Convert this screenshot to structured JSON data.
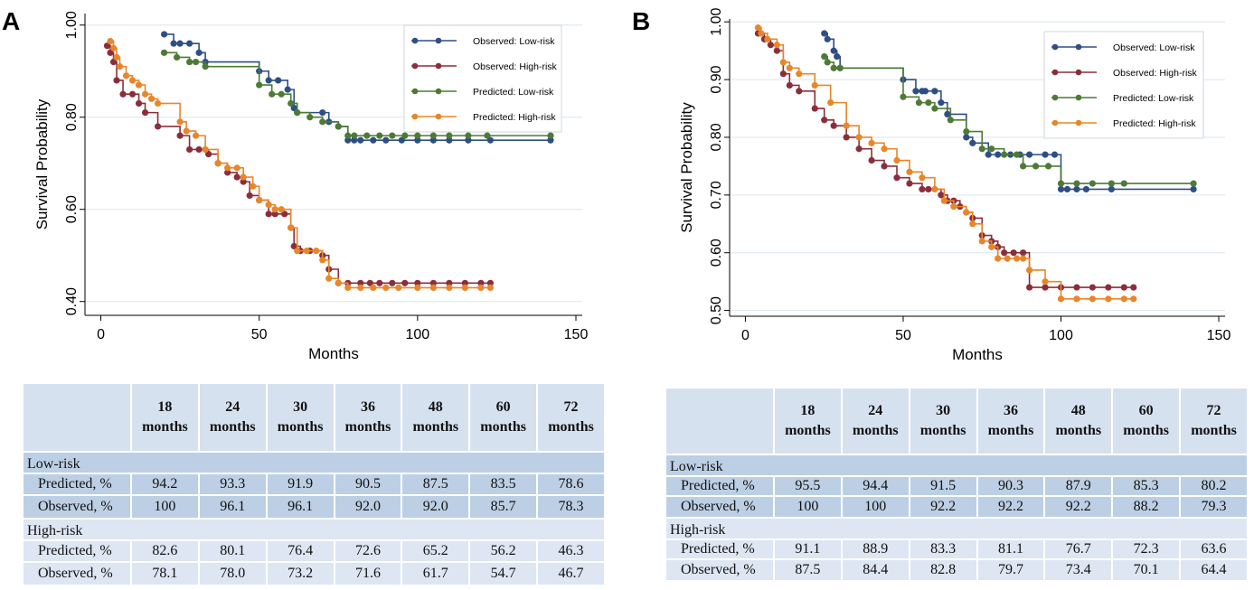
{
  "chart_data": [
    {
      "panel": "A",
      "type": "line",
      "xlabel": "Months",
      "ylabel": "Survival Probability",
      "xlim": [
        -5,
        152
      ],
      "ylim": [
        0.37,
        1.025
      ],
      "xticks": [
        0,
        50,
        100,
        150
      ],
      "yticks": [
        0.4,
        0.6,
        0.8,
        1.0
      ],
      "ytick_labels": [
        "0.40",
        "0.60",
        "0.80",
        "1.00"
      ],
      "legend_position": "top-right",
      "series": [
        {
          "name": "Observed: Low-risk",
          "color": "#2e4f86",
          "x": [
            20,
            23,
            25,
            28,
            31,
            33,
            50,
            53,
            56,
            59,
            61,
            62,
            70,
            72,
            75,
            78,
            80,
            82,
            86,
            90,
            95,
            100,
            105,
            110,
            116,
            123,
            142
          ],
          "y": [
            0.98,
            0.96,
            0.96,
            0.96,
            0.94,
            0.92,
            0.9,
            0.88,
            0.88,
            0.86,
            0.82,
            0.81,
            0.81,
            0.79,
            0.78,
            0.75,
            0.75,
            0.75,
            0.75,
            0.75,
            0.75,
            0.75,
            0.75,
            0.75,
            0.75,
            0.75,
            0.75
          ]
        },
        {
          "name": "Observed: High-risk",
          "color": "#8b2e3c",
          "x": [
            2,
            3,
            4,
            5,
            7,
            10,
            12,
            14,
            18,
            25,
            28,
            31,
            34,
            37,
            40,
            43,
            45,
            47,
            50,
            53,
            55,
            58,
            60,
            61,
            63,
            66,
            70,
            72,
            75,
            78,
            82,
            85,
            88,
            92,
            96,
            100,
            105,
            110,
            115,
            120,
            123
          ],
          "y": [
            0.955,
            0.94,
            0.92,
            0.88,
            0.85,
            0.85,
            0.83,
            0.81,
            0.78,
            0.76,
            0.73,
            0.73,
            0.72,
            0.7,
            0.68,
            0.67,
            0.66,
            0.63,
            0.62,
            0.59,
            0.59,
            0.59,
            0.56,
            0.52,
            0.51,
            0.51,
            0.5,
            0.47,
            0.44,
            0.44,
            0.44,
            0.44,
            0.44,
            0.44,
            0.44,
            0.44,
            0.44,
            0.44,
            0.44,
            0.44,
            0.44
          ]
        },
        {
          "name": "Predicted: Low-risk",
          "color": "#4d7a35",
          "x": [
            20,
            24,
            28,
            30,
            33,
            50,
            54,
            57,
            60,
            62,
            66,
            70,
            75,
            78,
            80,
            84,
            88,
            92,
            96,
            100,
            105,
            110,
            116,
            122,
            142
          ],
          "y": [
            0.94,
            0.93,
            0.92,
            0.92,
            0.91,
            0.87,
            0.85,
            0.85,
            0.83,
            0.81,
            0.8,
            0.79,
            0.78,
            0.76,
            0.76,
            0.76,
            0.76,
            0.76,
            0.76,
            0.76,
            0.76,
            0.76,
            0.76,
            0.76,
            0.76
          ]
        },
        {
          "name": "Predicted: High-risk",
          "color": "#e8862a",
          "x": [
            3,
            4,
            5,
            6,
            8,
            10,
            12,
            14,
            16,
            18,
            25,
            27,
            30,
            33,
            37,
            40,
            43,
            45,
            48,
            50,
            53,
            55,
            57,
            60,
            62,
            65,
            68,
            70,
            72,
            75,
            78,
            82,
            86,
            90,
            94,
            100,
            105,
            110,
            115,
            120,
            123
          ],
          "y": [
            0.965,
            0.95,
            0.93,
            0.91,
            0.89,
            0.88,
            0.87,
            0.85,
            0.84,
            0.83,
            0.79,
            0.77,
            0.76,
            0.73,
            0.7,
            0.69,
            0.69,
            0.67,
            0.65,
            0.62,
            0.61,
            0.6,
            0.6,
            0.56,
            0.51,
            0.51,
            0.51,
            0.49,
            0.45,
            0.44,
            0.43,
            0.43,
            0.43,
            0.43,
            0.43,
            0.43,
            0.43,
            0.43,
            0.43,
            0.43,
            0.43
          ]
        }
      ]
    },
    {
      "panel": "B",
      "type": "line",
      "xlabel": "Months",
      "ylabel": "Survival Probability",
      "xlim": [
        -5,
        152
      ],
      "ylim": [
        0.49,
        1.005
      ],
      "xticks": [
        0,
        50,
        100,
        150
      ],
      "yticks": [
        0.5,
        0.6,
        0.7,
        0.8,
        0.9,
        1.0
      ],
      "ytick_labels": [
        "0.50",
        "0.60",
        "0.70",
        "0.80",
        "0.90",
        "1.00"
      ],
      "legend_position": "top-right",
      "series": [
        {
          "name": "Observed: Low-risk",
          "color": "#2e4f86",
          "x": [
            25,
            26,
            28,
            29,
            30,
            50,
            54,
            56,
            57,
            60,
            62,
            64,
            70,
            72,
            77,
            80,
            84,
            87,
            90,
            95,
            98,
            100,
            102,
            105,
            108,
            116,
            142
          ],
          "y": [
            0.98,
            0.97,
            0.95,
            0.94,
            0.92,
            0.9,
            0.88,
            0.88,
            0.88,
            0.88,
            0.86,
            0.84,
            0.8,
            0.79,
            0.77,
            0.77,
            0.77,
            0.77,
            0.77,
            0.77,
            0.77,
            0.71,
            0.71,
            0.71,
            0.71,
            0.71,
            0.71
          ]
        },
        {
          "name": "Observed: High-risk",
          "color": "#8b2e3c",
          "x": [
            4,
            6,
            8,
            10,
            12,
            14,
            17,
            22,
            25,
            28,
            32,
            36,
            40,
            44,
            48,
            52,
            56,
            58,
            62,
            64,
            66,
            68,
            70,
            72,
            75,
            78,
            80,
            82,
            85,
            88,
            90,
            95,
            100,
            105,
            110,
            115,
            120,
            123
          ],
          "y": [
            0.98,
            0.97,
            0.96,
            0.95,
            0.91,
            0.89,
            0.88,
            0.85,
            0.83,
            0.82,
            0.8,
            0.78,
            0.76,
            0.75,
            0.73,
            0.72,
            0.71,
            0.71,
            0.7,
            0.69,
            0.69,
            0.68,
            0.67,
            0.66,
            0.63,
            0.62,
            0.61,
            0.6,
            0.6,
            0.6,
            0.54,
            0.54,
            0.54,
            0.54,
            0.54,
            0.54,
            0.54,
            0.54
          ]
        },
        {
          "name": "Predicted: Low-risk",
          "color": "#4d7a35",
          "x": [
            25,
            26,
            28,
            30,
            50,
            55,
            58,
            60,
            65,
            70,
            75,
            78,
            82,
            86,
            88,
            92,
            96,
            100,
            105,
            110,
            116,
            120,
            142
          ],
          "y": [
            0.94,
            0.93,
            0.92,
            0.92,
            0.87,
            0.86,
            0.86,
            0.85,
            0.83,
            0.81,
            0.78,
            0.78,
            0.77,
            0.77,
            0.75,
            0.75,
            0.75,
            0.72,
            0.72,
            0.72,
            0.72,
            0.72,
            0.72
          ]
        },
        {
          "name": "Predicted: High-risk",
          "color": "#e8862a",
          "x": [
            4,
            5,
            7,
            10,
            12,
            14,
            17,
            22,
            27,
            32,
            36,
            40,
            44,
            48,
            52,
            56,
            60,
            63,
            66,
            70,
            72,
            75,
            78,
            80,
            83,
            86,
            88,
            90,
            95,
            100,
            105,
            110,
            115,
            120,
            123
          ],
          "y": [
            0.99,
            0.98,
            0.97,
            0.96,
            0.93,
            0.92,
            0.91,
            0.89,
            0.86,
            0.82,
            0.8,
            0.79,
            0.78,
            0.76,
            0.74,
            0.73,
            0.71,
            0.69,
            0.68,
            0.67,
            0.65,
            0.62,
            0.61,
            0.59,
            0.59,
            0.59,
            0.59,
            0.57,
            0.55,
            0.52,
            0.52,
            0.52,
            0.52,
            0.52,
            0.52
          ]
        }
      ]
    }
  ],
  "tables": [
    {
      "headers": [
        [
          "18",
          "months"
        ],
        [
          "24",
          "months"
        ],
        [
          "30",
          "months"
        ],
        [
          "36",
          "months"
        ],
        [
          "48",
          "months"
        ],
        [
          "60",
          "months"
        ],
        [
          "72",
          "months"
        ]
      ],
      "groups": [
        {
          "name": "Low-risk",
          "rows": [
            {
              "label": "Predicted, %",
              "values": [
                "94.2",
                "93.3",
                "91.9",
                "90.5",
                "87.5",
                "83.5",
                "78.6"
              ]
            },
            {
              "label": "Observed, %",
              "values": [
                "100",
                "96.1",
                "96.1",
                "92.0",
                "92.0",
                "85.7",
                "78.3"
              ]
            }
          ]
        },
        {
          "name": "High-risk",
          "rows": [
            {
              "label": "Predicted, %",
              "values": [
                "82.6",
                "80.1",
                "76.4",
                "72.6",
                "65.2",
                "56.2",
                "46.3"
              ]
            },
            {
              "label": "Observed, %",
              "values": [
                "78.1",
                "78.0",
                "73.2",
                "71.6",
                "61.7",
                "54.7",
                "46.7"
              ]
            }
          ]
        }
      ]
    },
    {
      "headers": [
        [
          "18",
          "months"
        ],
        [
          "24",
          "months"
        ],
        [
          "30",
          "months"
        ],
        [
          "36",
          "months"
        ],
        [
          "48",
          "months"
        ],
        [
          "60",
          "months"
        ],
        [
          "72",
          "months"
        ]
      ],
      "groups": [
        {
          "name": "Low-risk",
          "rows": [
            {
              "label": "Predicted, %",
              "values": [
                "95.5",
                "94.4",
                "91.5",
                "90.3",
                "87.9",
                "85.3",
                "80.2"
              ]
            },
            {
              "label": "Observed, %",
              "values": [
                "100",
                "100",
                "92.2",
                "92.2",
                "92.2",
                "88.2",
                "79.3"
              ]
            }
          ]
        },
        {
          "name": "High-risk",
          "rows": [
            {
              "label": "Predicted, %",
              "values": [
                "91.1",
                "88.9",
                "83.3",
                "81.1",
                "76.7",
                "72.3",
                "63.6"
              ]
            },
            {
              "label": "Observed, %",
              "values": [
                "87.5",
                "84.4",
                "82.8",
                "79.7",
                "73.4",
                "70.1",
                "64.4"
              ]
            }
          ]
        }
      ]
    }
  ]
}
